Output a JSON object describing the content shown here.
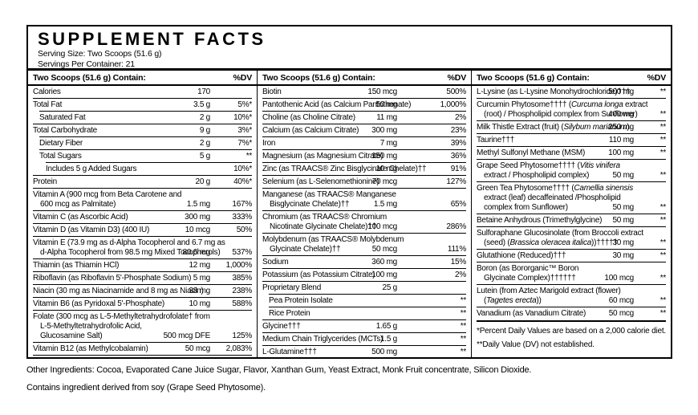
{
  "colors": {
    "text": "#000000",
    "background": "#ffffff",
    "rule": "#000000"
  },
  "label": {
    "title": "SUPPLEMENT FACTS",
    "serving_size": "Serving Size: Two Scoops (51.6 g)",
    "servings_per_container": "Servings Per Container: 21",
    "column_header": "Two Scoops (51.6 g) Contain:",
    "dv_header": "%DV",
    "italic_phrases": [
      "Curcuma longa",
      "Silybum marianum",
      "Vitis vinifera",
      "Camellia sinensis",
      "Brassica oleracea italica",
      "Tagetes erecta"
    ],
    "columns": [
      {
        "rows": [
          {
            "name_lines": [
              "Calories"
            ],
            "amount": "170",
            "dv": "",
            "indent": 0
          },
          {
            "name_lines": [
              "Total Fat"
            ],
            "amount": "3.5 g",
            "dv": "5%*",
            "indent": 0
          },
          {
            "name_lines": [
              "Saturated Fat"
            ],
            "amount": "2 g",
            "dv": "10%*",
            "indent": 1
          },
          {
            "name_lines": [
              "Total Carbohydrate"
            ],
            "amount": "9 g",
            "dv": "3%*",
            "indent": 0
          },
          {
            "name_lines": [
              "Dietary Fiber"
            ],
            "amount": "2 g",
            "dv": "7%*",
            "indent": 1
          },
          {
            "name_lines": [
              "Total Sugars"
            ],
            "amount": "5 g",
            "dv": "**",
            "indent": 1
          },
          {
            "name_lines": [
              "Includes 5 g Added Sugars"
            ],
            "amount": "",
            "dv": "10%*",
            "indent": 2
          },
          {
            "name_lines": [
              "Protein"
            ],
            "amount": "20 g",
            "dv": "40%*",
            "indent": 0
          },
          {
            "name_lines": [
              "Vitamin A (900 mcg from Beta Carotene and",
              "600 mcg as Palmitate)"
            ],
            "amount": "1.5 mg",
            "dv": "167%",
            "indent": 0
          },
          {
            "name_lines": [
              "Vitamin C (as Ascorbic Acid)"
            ],
            "amount": "300 mg",
            "dv": "333%",
            "indent": 0
          },
          {
            "name_lines": [
              "Vitamin D (as Vitamin D3) (400 IU)"
            ],
            "amount": "10 mcg",
            "dv": "50%",
            "indent": 0
          },
          {
            "name_lines": [
              "Vitamin E (73.9 mg as d-Alpha Tocopherol and 6.7 mg as",
              "d-Alpha Tocopherol from 98.5 mg Mixed Tocopherols)"
            ],
            "amount": "80.6 mg",
            "dv": "537%",
            "indent": 0
          },
          {
            "name_lines": [
              "Thiamin (as Thiamin HCl)"
            ],
            "amount": "12 mg",
            "dv": "1,000%",
            "indent": 0
          },
          {
            "name_lines": [
              "Riboflavin (as Riboflavin 5'-Phosphate Sodium)"
            ],
            "amount": "5 mg",
            "dv": "385%",
            "indent": 0
          },
          {
            "name_lines": [
              "Niacin (30 mg as Niacinamide and 8 mg as Niacin)"
            ],
            "amount": "38 mg",
            "dv": "238%",
            "indent": 0
          },
          {
            "name_lines": [
              "Vitamin B6 (as Pyridoxal 5'-Phosphate)"
            ],
            "amount": "10 mg",
            "dv": "588%",
            "indent": 0
          },
          {
            "name_lines": [
              "Folate (300 mcg as L-5-Methyltetrahydrofolate† from",
              "L-5-Methyltetrahydrofolic Acid,",
              "Glucosamine Salt)"
            ],
            "amount": "500 mcg DFE",
            "dv": "125%",
            "indent": 0
          },
          {
            "name_lines": [
              "Vitamin B12 (as Methylcobalamin)"
            ],
            "amount": "50 mcg",
            "dv": "2,083%",
            "indent": 0
          }
        ]
      },
      {
        "rows": [
          {
            "name_lines": [
              "Biotin"
            ],
            "amount": "150 mcg",
            "dv": "500%",
            "indent": 0
          },
          {
            "name_lines": [
              "Pantothenic Acid (as Calcium Pantothenate)"
            ],
            "amount": "50 mg",
            "dv": "1,000%",
            "indent": 0
          },
          {
            "name_lines": [
              "Choline (as Choline Citrate)"
            ],
            "amount": "11 mg",
            "dv": "2%",
            "indent": 0
          },
          {
            "name_lines": [
              "Calcium (as Calcium Citrate)"
            ],
            "amount": "300 mg",
            "dv": "23%",
            "indent": 0
          },
          {
            "name_lines": [
              "Iron"
            ],
            "amount": "7 mg",
            "dv": "39%",
            "indent": 0
          },
          {
            "name_lines": [
              "Magnesium (as Magnesium Citrate)"
            ],
            "amount": "150 mg",
            "dv": "36%",
            "indent": 0
          },
          {
            "name_lines": [
              "Zinc (as TRAACS® Zinc Bisglycinate Chelate)††"
            ],
            "amount": "10 mg",
            "dv": "91%",
            "indent": 0
          },
          {
            "name_lines": [
              "Selenium (as L-Selenomethionine)"
            ],
            "amount": "70 mcg",
            "dv": "127%",
            "indent": 0
          },
          {
            "name_lines": [
              "Manganese (as TRAACS® Manganese",
              "Bisglycinate Chelate)††"
            ],
            "amount": "1.5 mg",
            "dv": "65%",
            "indent": 0
          },
          {
            "name_lines": [
              "Chromium (as TRAACS® Chromium",
              "Nicotinate Glycinate Chelate)††"
            ],
            "amount": "100 mcg",
            "dv": "286%",
            "indent": 0
          },
          {
            "name_lines": [
              "Molybdenum (as TRAACS® Molybdenum",
              "Glycinate Chelate)††"
            ],
            "amount": "50 mcg",
            "dv": "111%",
            "indent": 0
          },
          {
            "name_lines": [
              "Sodium"
            ],
            "amount": "360 mg",
            "dv": "15%",
            "indent": 0
          },
          {
            "name_lines": [
              "Potassium (as Potassium Citrate)"
            ],
            "amount": "100 mg",
            "dv": "2%",
            "indent": 0
          },
          {
            "name_lines": [
              "Proprietary Blend"
            ],
            "amount": "25 g",
            "dv": "",
            "indent": 0
          },
          {
            "name_lines": [
              "Pea Protein Isolate"
            ],
            "amount": "",
            "dv": "**",
            "indent": 1
          },
          {
            "name_lines": [
              "Rice Protein"
            ],
            "amount": "",
            "dv": "**",
            "indent": 1
          },
          {
            "name_lines": [
              "Glycine†††"
            ],
            "amount": "1.65 g",
            "dv": "**",
            "indent": 0
          },
          {
            "name_lines": [
              "Medium Chain Triglycerides (MCTs)"
            ],
            "amount": "1.5 g",
            "dv": "**",
            "indent": 0
          },
          {
            "name_lines": [
              "L-Glutamine†††"
            ],
            "amount": "500 mg",
            "dv": "**",
            "indent": 0
          }
        ]
      },
      {
        "rows": [
          {
            "name_lines": [
              "L-Lysine (as L-Lysine Monohydrochloride)†††"
            ],
            "amount": "500 mg",
            "dv": "**",
            "indent": 0
          },
          {
            "name_lines": [
              "Curcumin Phytosome†††† (Curcuma longa extract",
              "(root) / Phospholipid complex from Sunflower)"
            ],
            "amount": "400 mg",
            "dv": "**",
            "indent": 0
          },
          {
            "name_lines": [
              "Milk Thistle Extract (fruit) (Silybum marianum)"
            ],
            "amount": "250 mg",
            "dv": "**",
            "indent": 0
          },
          {
            "name_lines": [
              "Taurine†††"
            ],
            "amount": "110 mg",
            "dv": "**",
            "indent": 0
          },
          {
            "name_lines": [
              "Methyl Sulfonyl Methane (MSM)"
            ],
            "amount": "100 mg",
            "dv": "**",
            "indent": 0
          },
          {
            "name_lines": [
              "Grape Seed Phytosome†††† (Vitis vinifera",
              "extract / Phospholipid complex)"
            ],
            "amount": "50 mg",
            "dv": "**",
            "indent": 0
          },
          {
            "name_lines": [
              "Green Tea Phytosome†††† (Camellia sinensis",
              "extract (leaf) decaffeinated /Phospholipid",
              "complex from Sunflower)"
            ],
            "amount": "50 mg",
            "dv": "**",
            "indent": 0
          },
          {
            "name_lines": [
              "Betaine Anhydrous (Trimethylglycine)"
            ],
            "amount": "50 mg",
            "dv": "**",
            "indent": 0
          },
          {
            "name_lines": [
              "Sulforaphane Glucosinolate (from Broccoli extract",
              "(seed) (Brassica oleracea italica))†††††"
            ],
            "amount": "30 mg",
            "dv": "**",
            "indent": 0
          },
          {
            "name_lines": [
              "Glutathione (Reduced)†††"
            ],
            "amount": "30 mg",
            "dv": "**",
            "indent": 0
          },
          {
            "name_lines": [
              "Boron (as Bororganic™ Boron",
              "Glycinate Complex)††††††"
            ],
            "amount": "100 mcg",
            "dv": "**",
            "indent": 0
          },
          {
            "name_lines": [
              "Lutein (from Aztec Marigold extract (flower)",
              "(Tagetes erecta))"
            ],
            "amount": "60 mcg",
            "dv": "**",
            "indent": 0
          },
          {
            "name_lines": [
              "Vanadium (as Vanadium Citrate)"
            ],
            "amount": "50 mcg",
            "dv": "**",
            "indent": 0
          }
        ]
      }
    ],
    "footnotes": [
      "*Percent Daily Values are based on a 2,000 calorie diet.",
      "**Daily Value (DV) not established."
    ],
    "other_ingredients": "Other Ingredients: Cocoa, Evaporated Cane Juice Sugar, Flavor, Xanthan Gum, Yeast Extract, Monk Fruit concentrate, Silicon Dioxide.",
    "allergen_statement": "Contains ingredient derived from soy (Grape Seed Phytosome)."
  }
}
